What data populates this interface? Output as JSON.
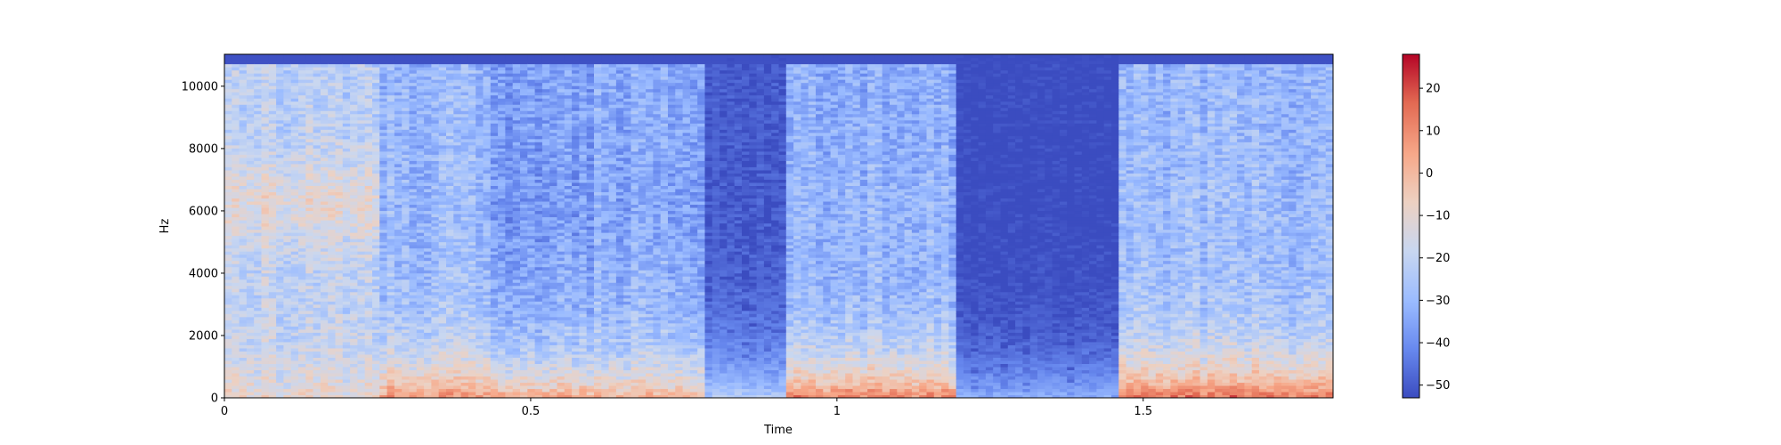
{
  "chart_data": {
    "type": "heatmap",
    "subtype": "spectrogram",
    "title": "",
    "xlabel": "Time",
    "ylabel": "Hz",
    "xlim": [
      0,
      1.81
    ],
    "ylim": [
      0,
      11025
    ],
    "xticks": [
      {
        "value": 0,
        "label": "0"
      },
      {
        "value": 0.5,
        "label": "0.5"
      },
      {
        "value": 1,
        "label": "1"
      },
      {
        "value": 1.5,
        "label": "1.5"
      }
    ],
    "yticks": [
      {
        "value": 0,
        "label": "0"
      },
      {
        "value": 2000,
        "label": "2000"
      },
      {
        "value": 4000,
        "label": "4000"
      },
      {
        "value": 6000,
        "label": "6000"
      },
      {
        "value": 8000,
        "label": "8000"
      },
      {
        "value": 10000,
        "label": "10000"
      }
    ],
    "colormap": "coolwarm",
    "colormap_stops": [
      "#3b4cc0",
      "#6788ee",
      "#9abbff",
      "#c9d7f0",
      "#edd1c2",
      "#f7a889",
      "#e26952",
      "#b40426"
    ],
    "value_range": [
      -53,
      28
    ],
    "colorbar": {
      "ticks": [
        {
          "value": 20,
          "label": "20"
        },
        {
          "value": 10,
          "label": "10"
        },
        {
          "value": 0,
          "label": "0"
        },
        {
          "value": -10,
          "label": "−10"
        },
        {
          "value": -20,
          "label": "−20"
        },
        {
          "value": -30,
          "label": "−30"
        },
        {
          "value": -40,
          "label": "−40"
        },
        {
          "value": -50,
          "label": "−50"
        }
      ]
    },
    "segments": [
      {
        "t0": 0.0,
        "t1": 0.25,
        "level": -22,
        "hot_low": -8,
        "hot_high": -5
      },
      {
        "t0": 0.25,
        "t1": 0.43,
        "level": -30,
        "hot_low": 8,
        "hot_high": -30
      },
      {
        "t0": 0.43,
        "t1": 0.6,
        "level": -35,
        "hot_low": 5,
        "hot_high": -38
      },
      {
        "t0": 0.6,
        "t1": 0.78,
        "level": -33,
        "hot_low": 3,
        "hot_high": -36
      },
      {
        "t0": 0.78,
        "t1": 0.92,
        "level": -48,
        "hot_low": -20,
        "hot_high": -52
      },
      {
        "t0": 0.92,
        "t1": 1.2,
        "level": -32,
        "hot_low": 12,
        "hot_high": -30
      },
      {
        "t0": 1.2,
        "t1": 1.46,
        "level": -52,
        "hot_low": -30,
        "hot_high": -53
      },
      {
        "t0": 1.46,
        "t1": 1.81,
        "level": -30,
        "hot_low": 14,
        "hot_high": -28
      }
    ]
  }
}
